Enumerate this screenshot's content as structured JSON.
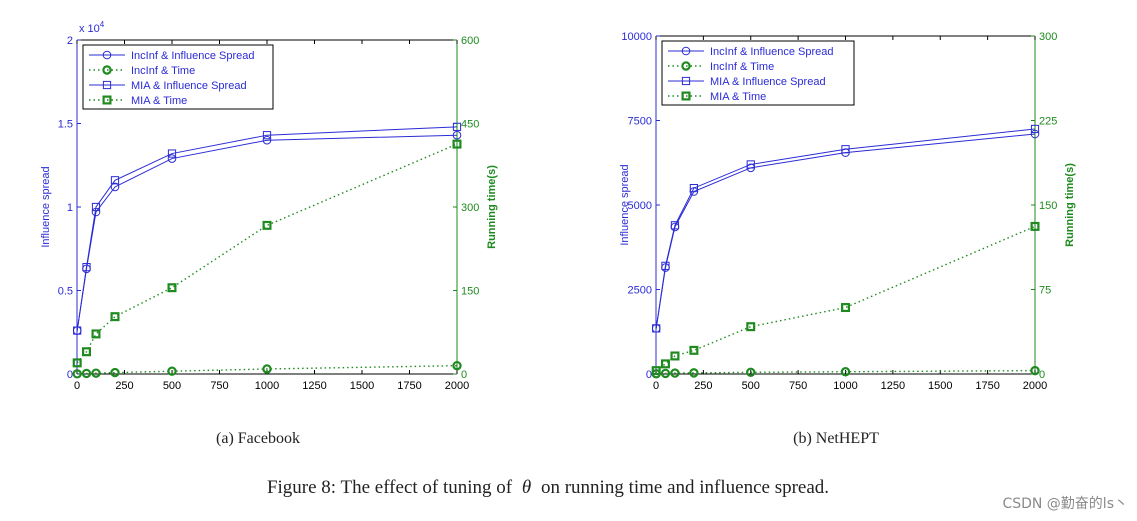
{
  "colors": {
    "blue": "#2b2bd6",
    "green": "#1f8a1f",
    "text": "#222222",
    "watermark": "#8a8a8a"
  },
  "chart_data": [
    {
      "type": "line",
      "id": "facebook",
      "subcaption": "(a) Facebook",
      "x": [
        1,
        50,
        100,
        200,
        500,
        1000,
        2000
      ],
      "xlim": [
        0,
        2000
      ],
      "xticks": [
        "0",
        "250",
        "500",
        "750",
        "1000",
        "1250",
        "1500",
        "1750",
        "2000"
      ],
      "ylabel_left": "Influence spread",
      "ylabel_right": "Running time(s)",
      "ylim_left": [
        0,
        20000
      ],
      "ylim_right": [
        0,
        600
      ],
      "yticks_left": [
        "0",
        "0.5",
        "1",
        "1.5",
        "2"
      ],
      "yticks_right": [
        "0",
        "150",
        "300",
        "450",
        "600"
      ],
      "y_multiplier": "x 10",
      "y_multiplier_exp": "4",
      "series": [
        {
          "name": "IncInf & Influence Spread",
          "axis": "left",
          "values": [
            2600,
            6300,
            9700,
            11200,
            12900,
            14000,
            14300
          ]
        },
        {
          "name": "IncInf & Time",
          "axis": "right",
          "values": [
            0.3,
            1,
            1.5,
            2.5,
            5,
            9,
            15
          ]
        },
        {
          "name": "MIA & Influence Spread",
          "axis": "left",
          "values": [
            2600,
            6400,
            10000,
            11600,
            13200,
            14300,
            14800
          ]
        },
        {
          "name": "MIA & Time",
          "axis": "right",
          "values": [
            20,
            40,
            72,
            103,
            155,
            267,
            413
          ]
        }
      ]
    },
    {
      "type": "line",
      "id": "nethept",
      "subcaption": "(b) NetHEPT",
      "x": [
        1,
        50,
        100,
        200,
        500,
        1000,
        2000
      ],
      "xlim": [
        0,
        2000
      ],
      "xticks": [
        "0",
        "250",
        "500",
        "750",
        "1000",
        "1250",
        "1500",
        "1750",
        "2000"
      ],
      "ylabel_left": "Influence spread",
      "ylabel_right": "Running time(s)",
      "ylim_left": [
        0,
        10000
      ],
      "ylim_right": [
        0,
        300
      ],
      "yticks_left": [
        "0",
        "2500",
        "5000",
        "7500",
        "10000"
      ],
      "yticks_right": [
        "0",
        "75",
        "150",
        "225",
        "300"
      ],
      "series": [
        {
          "name": "IncInf & Influence Spread",
          "axis": "left",
          "values": [
            1350,
            3150,
            4350,
            5400,
            6100,
            6550,
            7100
          ]
        },
        {
          "name": "IncInf & Time",
          "axis": "right",
          "values": [
            0.2,
            0.5,
            0.8,
            1,
            1.5,
            2,
            3
          ]
        },
        {
          "name": "MIA & Influence Spread",
          "axis": "left",
          "values": [
            1350,
            3200,
            4400,
            5500,
            6200,
            6650,
            7250
          ]
        },
        {
          "name": "MIA & Time",
          "axis": "right",
          "values": [
            3,
            9,
            16,
            21,
            42,
            59,
            131
          ]
        }
      ]
    }
  ],
  "figure_caption_prefix": "Figure 8: The effect of tuning of",
  "figure_caption_symbol": "θ",
  "figure_caption_suffix": "on running time and influence spread.",
  "watermark": "CSDN @勤奋的ls丶"
}
